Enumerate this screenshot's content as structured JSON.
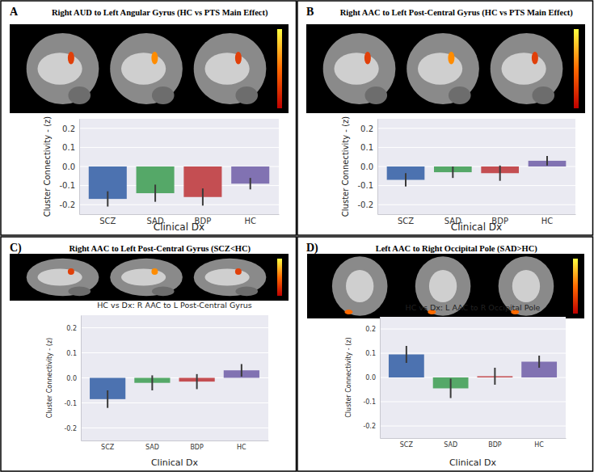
{
  "chart_data": [
    {
      "type": "bar",
      "panel_label": "A",
      "title": "Right AUD to Left Angular Gyrus (HC vs PTS Main Effect)",
      "x_label": "Clinical Dx",
      "y_label": "Cluster Connectivity - (z)",
      "categories": [
        "SCZ",
        "SAD",
        "BDP",
        "HC"
      ],
      "values": [
        -0.17,
        -0.14,
        -0.16,
        -0.09
      ],
      "errors": [
        0.04,
        0.045,
        0.045,
        0.03
      ],
      "colors": [
        "#4c72b0",
        "#55a868",
        "#c44e52",
        "#8172b2"
      ],
      "ylim": [
        -0.25,
        0.25
      ],
      "yticks": [
        -0.2,
        -0.1,
        {
          "value": 0,
          "label": "0.0"
        },
        0.1,
        0.2
      ],
      "grid": true
    },
    {
      "type": "bar",
      "panel_label": "B",
      "title": "Right AAC to Left Post-Central Gyrus (HC vs PTS Main Effect)",
      "x_label": "Clinical Dx",
      "y_label": "Cluster Connectivity - (z)",
      "categories": [
        "SCZ",
        "SAD",
        "BDP",
        "HC"
      ],
      "values": [
        -0.07,
        -0.03,
        -0.035,
        0.03
      ],
      "errors": [
        0.035,
        0.03,
        0.04,
        0.025
      ],
      "colors": [
        "#4c72b0",
        "#55a868",
        "#c44e52",
        "#8172b2"
      ],
      "ylim": [
        -0.25,
        0.25
      ],
      "yticks": [
        -0.2,
        -0.1,
        {
          "value": 0,
          "label": "0.0"
        },
        0.1,
        0.2
      ],
      "grid": true
    },
    {
      "type": "bar",
      "panel_label": "C)",
      "title": "Right AAC to Left Post-Central Gyrus (SCZ<HC)",
      "subtitle": "HC vs Dx: R AAC to L Post-Central Gyrus",
      "x_label": "Clinical Dx",
      "y_label": "Cluster Connectivity - (z)",
      "categories": [
        "SCZ",
        "SAD",
        "BDP",
        "HC"
      ],
      "values": [
        -0.085,
        -0.02,
        -0.015,
        0.03
      ],
      "errors": [
        0.035,
        0.03,
        0.03,
        0.025
      ],
      "colors": [
        "#4c72b0",
        "#55a868",
        "#c44e52",
        "#8172b2"
      ],
      "ylim": [
        -0.25,
        0.25
      ],
      "yticks": [
        -0.2,
        -0.1,
        {
          "value": 0,
          "label": "0.0"
        },
        0.1,
        0.2
      ],
      "grid": true
    },
    {
      "type": "bar",
      "panel_label": "D)",
      "title": "Left AAC to Right Occipital Pole (SAD>HC)",
      "subtitle": "HC vs Dx: L AAC to R Occipital Pole",
      "x_label": "Clinical Dx",
      "y_label": "Cluster Connectivity - (z)",
      "categories": [
        "SCZ",
        "SAD",
        "BDP",
        "HC"
      ],
      "values": [
        0.095,
        -0.045,
        0.005,
        0.065
      ],
      "errors": [
        0.035,
        0.04,
        0.035,
        0.025
      ],
      "colors": [
        "#4c72b0",
        "#55a868",
        "#c44e52",
        "#8172b2"
      ],
      "ylim": [
        -0.25,
        0.25
      ],
      "yticks": [
        -0.2,
        -0.1,
        {
          "value": 0,
          "label": "0.0"
        },
        0.1,
        0.2
      ],
      "grid": true
    }
  ]
}
